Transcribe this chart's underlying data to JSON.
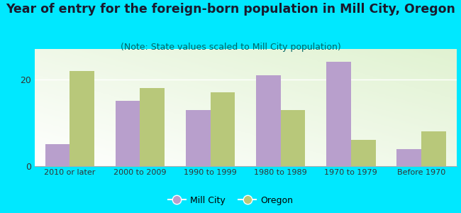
{
  "title": "Year of entry for the foreign-born population in Mill City, Oregon",
  "subtitle": "(Note: State values scaled to Mill City population)",
  "categories": [
    "2010 or later",
    "2000 to 2009",
    "1990 to 1999",
    "1980 to 1989",
    "1970 to 1979",
    "Before 1970"
  ],
  "mill_city": [
    5,
    15,
    13,
    21,
    24,
    4
  ],
  "oregon": [
    22,
    18,
    17,
    13,
    6,
    8
  ],
  "mill_city_color": "#b89fcc",
  "oregon_color": "#b8c87a",
  "background_outer": "#00e8ff",
  "ylim": [
    0,
    27
  ],
  "yticks": [
    0,
    20
  ],
  "legend_labels": [
    "Mill City",
    "Oregon"
  ],
  "title_fontsize": 12.5,
  "subtitle_fontsize": 9,
  "bar_width": 0.35,
  "title_color": "#1a1a2e",
  "subtitle_color": "#006666"
}
